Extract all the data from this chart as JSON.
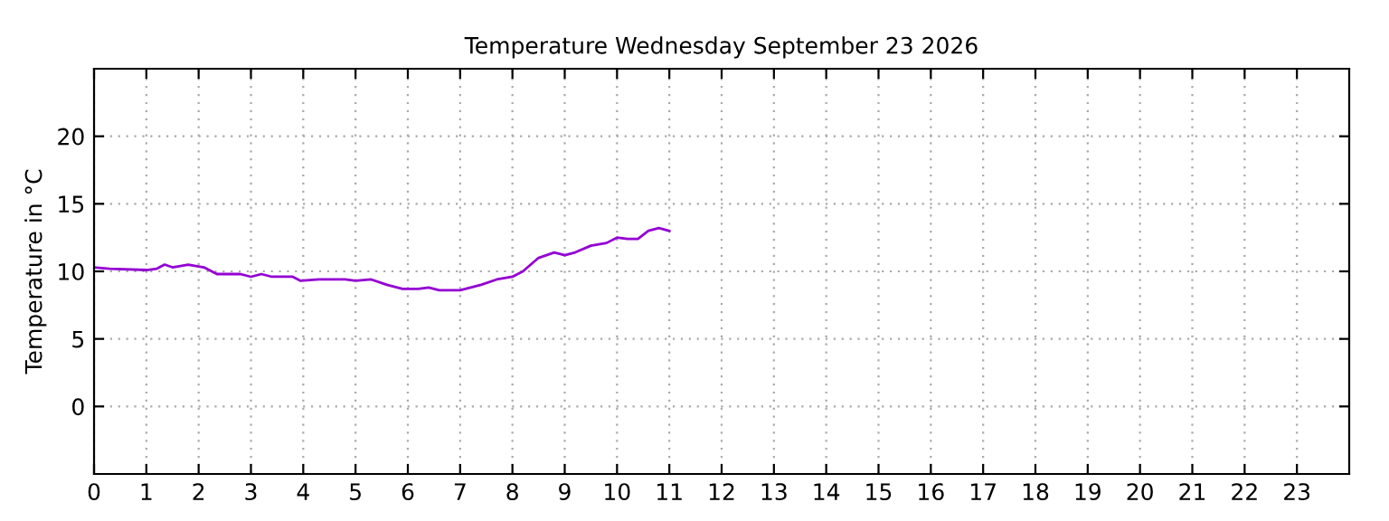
{
  "chart_data": {
    "type": "line",
    "title": "Temperature Wednesday September 23 2026",
    "ylabel": "Temperature in °C",
    "x": [
      0,
      0.3,
      1.0,
      1.2,
      1.35,
      1.5,
      1.8,
      2.1,
      2.35,
      2.8,
      3.0,
      3.2,
      3.4,
      3.8,
      3.95,
      4.3,
      4.8,
      5.0,
      5.3,
      5.6,
      5.9,
      6.2,
      6.4,
      6.6,
      7.0,
      7.4,
      7.7,
      8.0,
      8.2,
      8.5,
      8.8,
      9.0,
      9.2,
      9.5,
      9.8,
      10.0,
      10.2,
      10.4,
      10.6,
      10.8,
      11.0
    ],
    "series": [
      {
        "color": "#9400d3",
        "values": [
          10.3,
          10.2,
          10.1,
          10.2,
          10.5,
          10.3,
          10.5,
          10.3,
          9.8,
          9.8,
          9.6,
          9.8,
          9.6,
          9.6,
          9.3,
          9.4,
          9.4,
          9.3,
          9.4,
          9.0,
          8.7,
          8.7,
          8.8,
          8.6,
          8.6,
          9.0,
          9.4,
          9.6,
          10.0,
          11.0,
          11.4,
          11.2,
          11.4,
          11.9,
          12.1,
          12.5,
          12.4,
          12.4,
          13.0,
          13.2,
          13.0
        ]
      }
    ],
    "xlim": [
      0,
      24
    ],
    "xticks": [
      0,
      1,
      2,
      3,
      4,
      5,
      6,
      7,
      8,
      9,
      10,
      11,
      12,
      13,
      14,
      15,
      16,
      17,
      18,
      19,
      20,
      21,
      22,
      23
    ],
    "ylim": [
      -5,
      25
    ],
    "yticks": [
      0,
      5,
      10,
      15,
      20
    ],
    "grid": true,
    "marker": "none",
    "line_style": "solid",
    "legend": false
  }
}
